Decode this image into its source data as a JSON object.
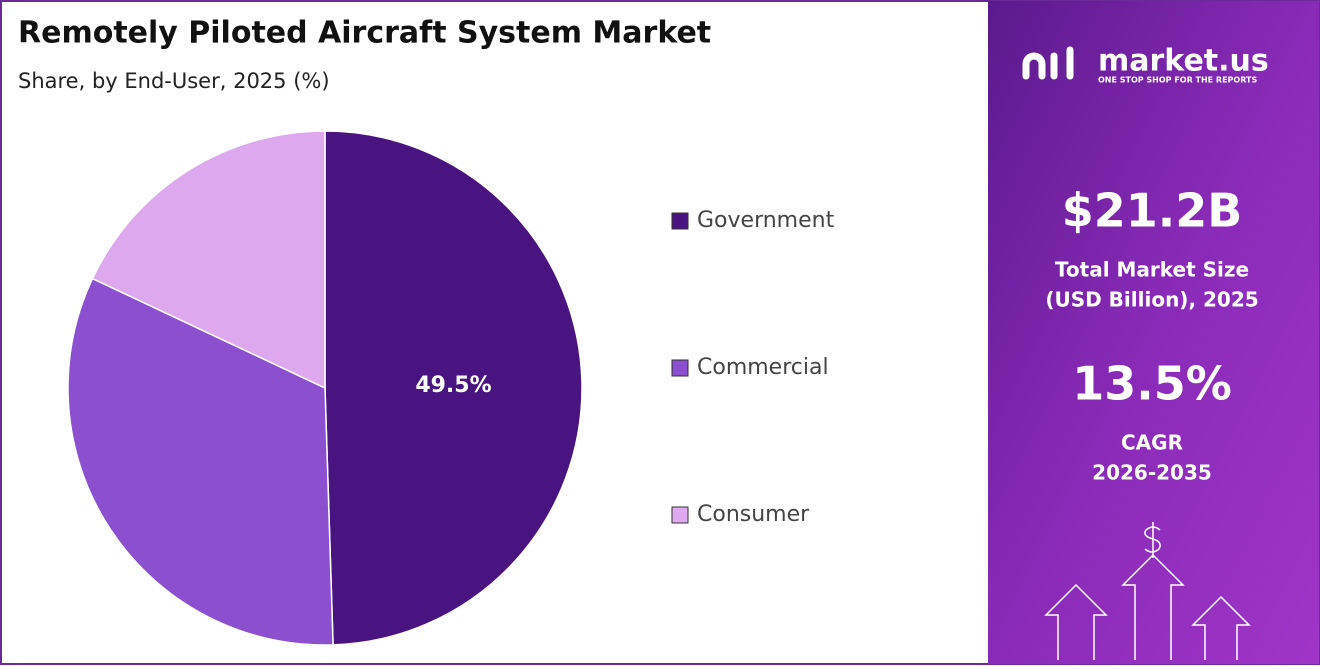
{
  "chart_data": {
    "type": "pie",
    "title": "Remotely Piloted Aircraft System Market",
    "subtitle": "Share, by End-User, 2025 (%)",
    "categories": [
      "Government",
      "Commercial",
      "Consumer"
    ],
    "values": [
      49.5,
      32.5,
      18
    ],
    "value_labels": [
      "49.5%",
      null,
      null
    ],
    "colors": [
      "#4a1480",
      "#8b4fd0",
      "#dea8ee"
    ]
  },
  "sidebar": {
    "logo": "market.us",
    "tagline": "ONE STOP SHOP FOR THE REPORTS",
    "market_size": "$21.2B",
    "market_size_label": [
      "Total Market Size",
      "(USD Billion), 2025"
    ],
    "cagr": "13.5%",
    "cagr_label": [
      "CAGR",
      "2026-2035"
    ]
  }
}
